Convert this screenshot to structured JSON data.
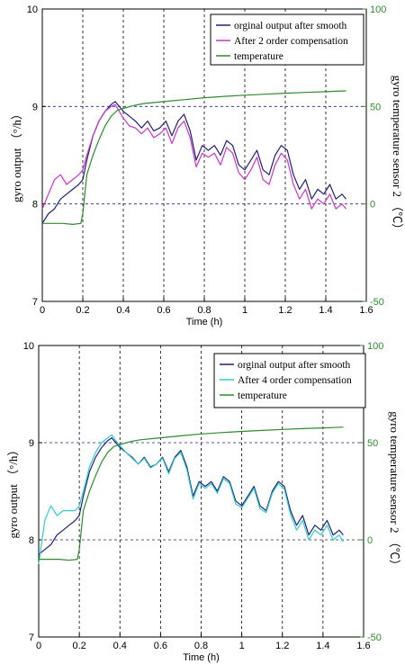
{
  "chart_data": [
    {
      "type": "line",
      "xlabel": "Time (h)",
      "ylabel": "gyro output （°/h）",
      "y2label": "gyro temperature sensor 2 （℃）",
      "xlim": [
        0,
        1.6
      ],
      "ylim": [
        7,
        10
      ],
      "y2lim": [
        -50,
        100
      ],
      "xticks": [
        "0",
        "0.2",
        "0.4",
        "0.6",
        "0.8",
        "1",
        "1.2",
        "1.4",
        "1.6"
      ],
      "yticks": [
        "7",
        "8",
        "9",
        "10"
      ],
      "y2ticks": [
        "-50",
        "0",
        "50",
        "100"
      ],
      "grid": "dashed at x ticks and y=8, y=9",
      "legend_position": "top-right",
      "series": [
        {
          "name": "orginal output after smooth",
          "color": "#1f1f7a",
          "axis": "left",
          "x": [
            0,
            0.03,
            0.06,
            0.09,
            0.12,
            0.15,
            0.18,
            0.2,
            0.22,
            0.25,
            0.28,
            0.31,
            0.34,
            0.36,
            0.38,
            0.4,
            0.43,
            0.46,
            0.49,
            0.52,
            0.55,
            0.58,
            0.61,
            0.64,
            0.67,
            0.7,
            0.73,
            0.76,
            0.79,
            0.82,
            0.85,
            0.88,
            0.91,
            0.94,
            0.97,
            1.0,
            1.03,
            1.06,
            1.09,
            1.12,
            1.15,
            1.18,
            1.21,
            1.24,
            1.27,
            1.3,
            1.33,
            1.36,
            1.39,
            1.42,
            1.45,
            1.48,
            1.5
          ],
          "y": [
            7.8,
            7.9,
            7.95,
            8.05,
            8.1,
            8.15,
            8.2,
            8.25,
            8.45,
            8.7,
            8.85,
            8.95,
            9.02,
            9.05,
            9.0,
            8.95,
            8.9,
            8.85,
            8.78,
            8.85,
            8.75,
            8.78,
            8.85,
            8.7,
            8.85,
            8.92,
            8.75,
            8.45,
            8.6,
            8.55,
            8.6,
            8.5,
            8.65,
            8.6,
            8.4,
            8.35,
            8.45,
            8.55,
            8.35,
            8.3,
            8.5,
            8.6,
            8.55,
            8.3,
            8.15,
            8.25,
            8.05,
            8.15,
            8.1,
            8.2,
            8.05,
            8.1,
            8.05
          ]
        },
        {
          "name": "After 2 order compensation",
          "color": "#cc33cc",
          "axis": "left",
          "x": [
            0,
            0.03,
            0.06,
            0.09,
            0.12,
            0.15,
            0.18,
            0.2,
            0.22,
            0.25,
            0.28,
            0.31,
            0.34,
            0.36,
            0.38,
            0.4,
            0.43,
            0.46,
            0.49,
            0.52,
            0.55,
            0.58,
            0.61,
            0.64,
            0.67,
            0.7,
            0.73,
            0.76,
            0.79,
            0.82,
            0.85,
            0.88,
            0.91,
            0.94,
            0.97,
            1.0,
            1.03,
            1.06,
            1.09,
            1.12,
            1.15,
            1.18,
            1.21,
            1.24,
            1.27,
            1.3,
            1.33,
            1.36,
            1.39,
            1.42,
            1.45,
            1.48,
            1.5
          ],
          "y": [
            7.95,
            8.1,
            8.25,
            8.3,
            8.2,
            8.25,
            8.3,
            8.35,
            8.5,
            8.7,
            8.85,
            8.95,
            9.0,
            9.02,
            8.95,
            8.88,
            8.8,
            8.78,
            8.72,
            8.78,
            8.68,
            8.72,
            8.78,
            8.62,
            8.78,
            8.85,
            8.68,
            8.38,
            8.52,
            8.48,
            8.52,
            8.4,
            8.58,
            8.52,
            8.32,
            8.25,
            8.35,
            8.48,
            8.25,
            8.2,
            8.4,
            8.52,
            8.45,
            8.2,
            8.05,
            8.15,
            7.95,
            8.05,
            8.0,
            8.1,
            7.95,
            8.0,
            7.95
          ]
        },
        {
          "name": "temperature",
          "color": "#2e8b2e",
          "axis": "right",
          "x": [
            0,
            0.05,
            0.1,
            0.15,
            0.19,
            0.2,
            0.22,
            0.25,
            0.28,
            0.31,
            0.34,
            0.37,
            0.4,
            0.45,
            0.5,
            0.6,
            0.7,
            0.8,
            0.9,
            1.0,
            1.1,
            1.2,
            1.3,
            1.4,
            1.45,
            1.5
          ],
          "y": [
            -10,
            -10,
            -10,
            -10.5,
            -10,
            -5,
            15,
            25,
            33,
            40,
            45,
            48,
            49,
            50.5,
            51.5,
            52.5,
            53.5,
            54.5,
            55.2,
            55.8,
            56.3,
            56.8,
            57.2,
            57.6,
            57.8,
            58
          ]
        }
      ]
    },
    {
      "type": "line",
      "xlabel": "Time (h)",
      "ylabel": "gyro output （°/h）",
      "y2label": "gyro temperature sensor 2 （℃）",
      "xlim": [
        0,
        1.6
      ],
      "ylim": [
        7,
        10
      ],
      "y2lim": [
        -50,
        100
      ],
      "xticks": [
        "0",
        "0.2",
        "0.4",
        "0.6",
        "0.8",
        "1",
        "1.2",
        "1.4",
        "1.6"
      ],
      "yticks": [
        "7",
        "8",
        "9",
        "10"
      ],
      "y2ticks": [
        "-50",
        "0",
        "50",
        "100"
      ],
      "grid": "dashed at x ticks and y=8, y=9",
      "legend_position": "top-right",
      "series": [
        {
          "name": "orginal output after smooth",
          "color": "#1f1f7a",
          "axis": "left",
          "x": [
            0,
            0.03,
            0.06,
            0.09,
            0.12,
            0.15,
            0.18,
            0.2,
            0.22,
            0.25,
            0.28,
            0.31,
            0.34,
            0.36,
            0.38,
            0.4,
            0.43,
            0.46,
            0.49,
            0.52,
            0.55,
            0.58,
            0.61,
            0.64,
            0.67,
            0.7,
            0.73,
            0.76,
            0.79,
            0.82,
            0.85,
            0.88,
            0.91,
            0.94,
            0.97,
            1.0,
            1.03,
            1.06,
            1.09,
            1.12,
            1.15,
            1.18,
            1.21,
            1.24,
            1.27,
            1.3,
            1.33,
            1.36,
            1.39,
            1.42,
            1.45,
            1.48,
            1.5
          ],
          "y": [
            7.85,
            7.9,
            7.95,
            8.05,
            8.1,
            8.15,
            8.2,
            8.25,
            8.45,
            8.7,
            8.85,
            8.95,
            9.02,
            9.05,
            9.0,
            8.95,
            8.9,
            8.85,
            8.78,
            8.85,
            8.75,
            8.78,
            8.85,
            8.7,
            8.85,
            8.92,
            8.75,
            8.45,
            8.6,
            8.55,
            8.6,
            8.5,
            8.65,
            8.6,
            8.4,
            8.35,
            8.45,
            8.55,
            8.35,
            8.3,
            8.5,
            8.6,
            8.55,
            8.3,
            8.15,
            8.25,
            8.05,
            8.15,
            8.1,
            8.2,
            8.05,
            8.1,
            8.05
          ]
        },
        {
          "name": "After 4 order compensation",
          "color": "#33cccc",
          "axis": "left",
          "x": [
            0,
            0.03,
            0.06,
            0.09,
            0.12,
            0.15,
            0.18,
            0.2,
            0.22,
            0.25,
            0.28,
            0.31,
            0.34,
            0.36,
            0.38,
            0.4,
            0.43,
            0.46,
            0.49,
            0.52,
            0.55,
            0.58,
            0.61,
            0.64,
            0.67,
            0.7,
            0.73,
            0.76,
            0.79,
            0.82,
            0.85,
            0.88,
            0.91,
            0.94,
            0.97,
            1.0,
            1.03,
            1.06,
            1.09,
            1.12,
            1.15,
            1.18,
            1.21,
            1.24,
            1.27,
            1.3,
            1.33,
            1.36,
            1.39,
            1.42,
            1.45,
            1.48,
            1.5
          ],
          "y": [
            7.75,
            8.2,
            8.35,
            8.25,
            8.3,
            8.3,
            8.3,
            8.35,
            8.5,
            8.75,
            8.9,
            9.0,
            9.05,
            9.08,
            9.02,
            8.97,
            8.9,
            8.84,
            8.78,
            8.84,
            8.74,
            8.78,
            8.84,
            8.68,
            8.84,
            8.9,
            8.72,
            8.42,
            8.58,
            8.53,
            8.58,
            8.48,
            8.63,
            8.58,
            8.37,
            8.33,
            8.43,
            8.53,
            8.32,
            8.28,
            8.48,
            8.58,
            8.52,
            8.26,
            8.1,
            8.2,
            8.0,
            8.1,
            8.05,
            8.15,
            8.0,
            8.05,
            7.98
          ]
        },
        {
          "name": "temperature",
          "color": "#2e8b2e",
          "axis": "right",
          "x": [
            0,
            0.05,
            0.1,
            0.15,
            0.19,
            0.2,
            0.22,
            0.25,
            0.28,
            0.31,
            0.34,
            0.37,
            0.4,
            0.45,
            0.5,
            0.6,
            0.7,
            0.8,
            0.9,
            1.0,
            1.1,
            1.2,
            1.3,
            1.4,
            1.45,
            1.5
          ],
          "y": [
            -10,
            -10,
            -10,
            -10.5,
            -10,
            -5,
            15,
            25,
            33,
            40,
            45,
            48,
            49,
            50.5,
            51.5,
            52.5,
            53.5,
            54.5,
            55.2,
            55.8,
            56.3,
            56.8,
            57.2,
            57.6,
            57.8,
            58
          ]
        }
      ]
    }
  ]
}
